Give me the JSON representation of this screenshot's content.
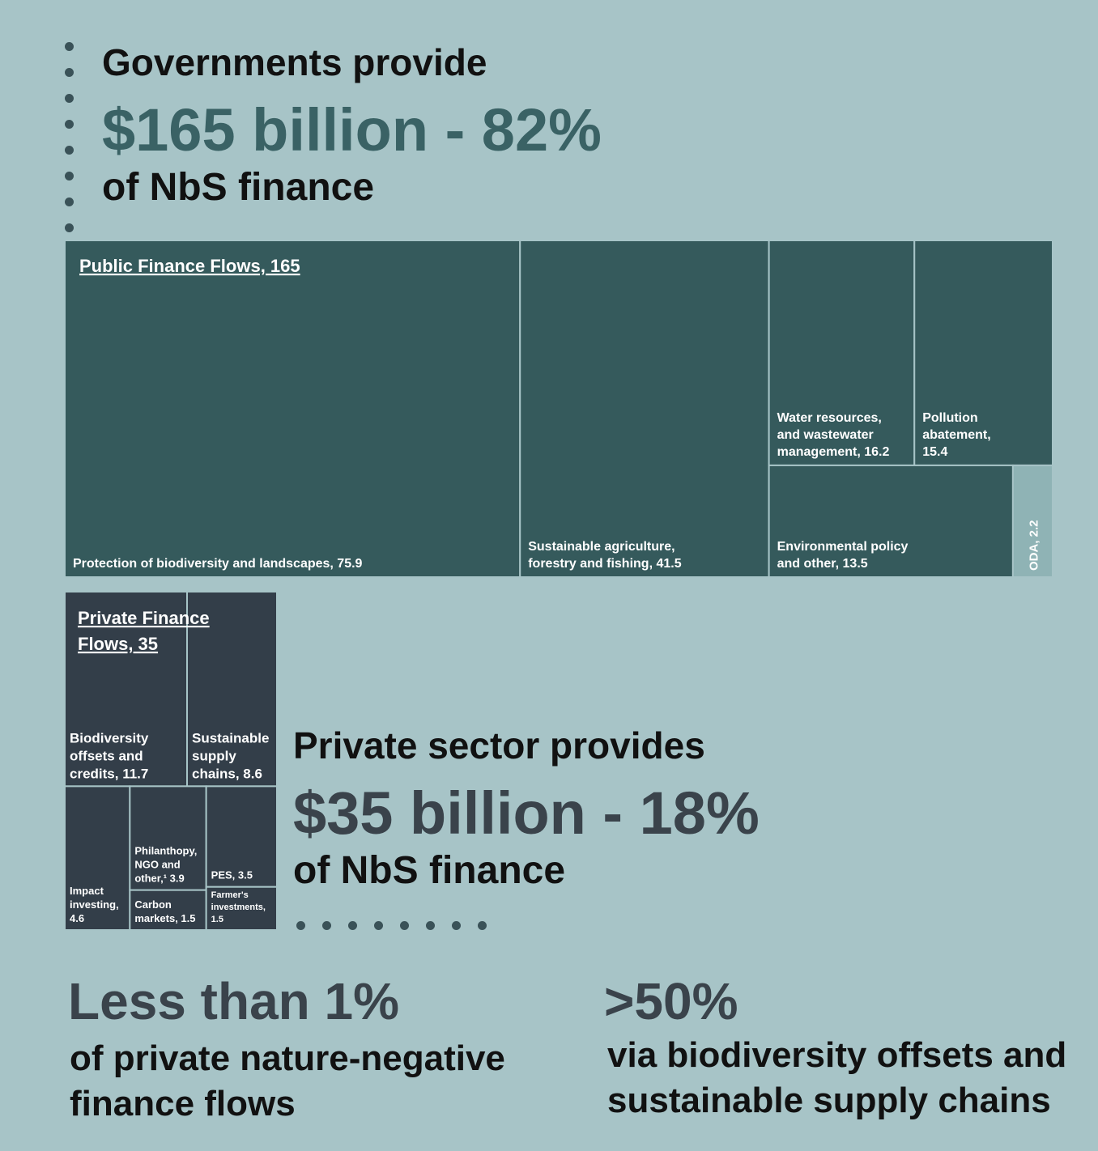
{
  "header_public": {
    "lead": "Governments provide",
    "big": "$165 billion - 82%",
    "sub": "of NbS finance"
  },
  "header_private": {
    "lead": "Private sector provides",
    "big": "$35 billion - 18%",
    "sub": "of NbS finance"
  },
  "bottom_left": {
    "big": "Less than 1%",
    "sub_lines": [
      "of private nature-negative",
      "finance flows"
    ]
  },
  "bottom_right": {
    "big": ">50%",
    "sub_lines": [
      "via biodiversity offsets and",
      "sustainable supply chains"
    ]
  },
  "colors": {
    "background": "#a7c4c7",
    "public_cell": "#355a5c",
    "oda_cell": "#8fb3b5",
    "private_cell": "#333e49",
    "public_big_text": "#3a6265",
    "private_big_text": "#3a434b"
  },
  "chart_data": {
    "type": "treemap",
    "groups": [
      {
        "title_lines": [
          "Public Finance Flows, 165"
        ],
        "total": 165,
        "items": [
          {
            "name": "Protection of biodiversity and landscapes",
            "value": 75.9,
            "label_lines": [
              "Protection of biodiversity and landscapes, 75.9"
            ]
          },
          {
            "name": "Sustainable agriculture, forestry and fishing",
            "value": 41.5,
            "label_lines": [
              "Sustainable agriculture,",
              "forestry and fishing, 41.5"
            ]
          },
          {
            "name": "Water resources, and wastewater management",
            "value": 16.2,
            "label_lines": [
              "Water resources,",
              "and wastewater",
              "management, 16.2"
            ]
          },
          {
            "name": "Pollution abatement",
            "value": 15.4,
            "label_lines": [
              "Pollution",
              "abatement,",
              "15.4"
            ]
          },
          {
            "name": "Environmental policy and other",
            "value": 13.5,
            "label_lines": [
              "Environmental policy",
              "and other, 13.5"
            ]
          },
          {
            "name": "ODA",
            "value": 2.2,
            "label_lines": [
              "ODA, 2.2"
            ]
          }
        ]
      },
      {
        "title_lines": [
          "Private Finance",
          "Flows, 35"
        ],
        "total": 35,
        "items": [
          {
            "name": "Biodiversity offsets and credits",
            "value": 11.7,
            "label_lines": [
              "Biodiversity",
              "offsets and",
              "credits, 11.7"
            ]
          },
          {
            "name": "Sustainable supply chains",
            "value": 8.6,
            "label_lines": [
              "Sustainable",
              "supply",
              "chains, 8.6"
            ]
          },
          {
            "name": "Impact investing",
            "value": 4.6,
            "label_lines": [
              "Impact",
              "investing,",
              "4.6"
            ]
          },
          {
            "name": "Philanthopy, NGO and other",
            "value": 3.9,
            "label_lines": [
              "Philanthopy,",
              "NGO and",
              "other,¹ 3.9"
            ]
          },
          {
            "name": "PES",
            "value": 3.5,
            "label_lines": [
              "PES, 3.5"
            ]
          },
          {
            "name": "Carbon markets",
            "value": 1.5,
            "label_lines": [
              "Carbon",
              "markets, 1.5"
            ]
          },
          {
            "name": "Farmer's investments",
            "value": 1.5,
            "label_lines": [
              "Farmer's",
              "investments,",
              "1.5"
            ]
          }
        ]
      }
    ]
  }
}
